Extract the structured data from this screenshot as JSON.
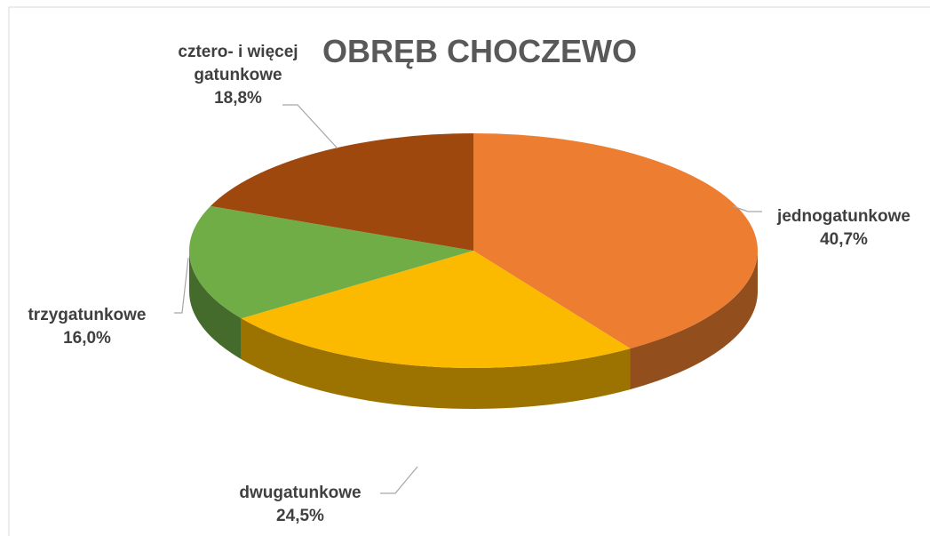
{
  "chart_data": {
    "type": "pie",
    "title": "OBRĘB CHOCZEWO",
    "categories": [
      "jednogatunkowe",
      "dwugatunkowe",
      "trzygatunkowe",
      "cztero- i więcej gatunkowe"
    ],
    "values": [
      40.7,
      24.5,
      16.0,
      18.8
    ],
    "value_labels": [
      "40,7%",
      "24,5%",
      "16,0%",
      "18,8%"
    ],
    "colors": [
      "#ED7D31",
      "#FBBA00",
      "#70AD47",
      "#9E480E"
    ]
  }
}
